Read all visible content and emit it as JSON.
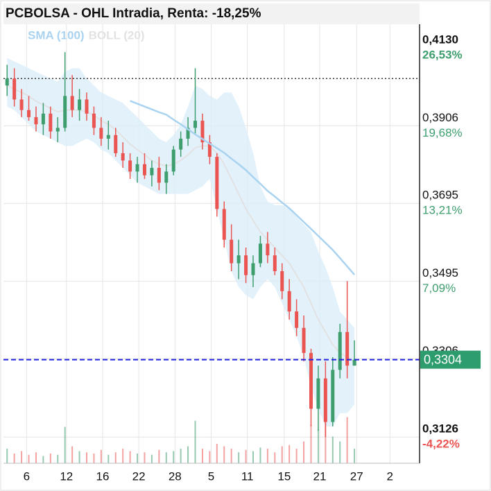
{
  "chart_data": {
    "type": "candlestick",
    "title": "PCBOLSA - OHL Intradia, Renta: -18,25%",
    "legend": [
      {
        "name": "SMA (100)",
        "color": "#a9d3f0"
      },
      {
        "name": "BOLL (20)",
        "color": "#e2e2e2"
      }
    ],
    "log_scale": true,
    "grid": true,
    "up_color": "#3e9e6e",
    "down_color": "#ea5552",
    "xlim": [
      -0.5,
      57
    ],
    "xticks": [
      {
        "value": 2.7,
        "label": "6"
      },
      {
        "value": 8.2,
        "label": "12"
      },
      {
        "value": 13.2,
        "label": "16"
      },
      {
        "value": 18.2,
        "label": "22"
      },
      {
        "value": 23.2,
        "label": "28"
      },
      {
        "value": 28.2,
        "label": "5"
      },
      {
        "value": 33.2,
        "label": "11"
      },
      {
        "value": 38.3,
        "label": "15"
      },
      {
        "value": 43.2,
        "label": "21"
      },
      {
        "value": 48.3,
        "label": "27"
      },
      {
        "value": 52.9,
        "label": "2"
      }
    ],
    "ylim": [
      0.3068,
      0.42
    ],
    "yticks": [
      {
        "value": 0.413,
        "label": "0,4130"
      },
      {
        "value": 0.3906,
        "label": "0,3906"
      },
      {
        "value": 0.3695,
        "label": "0,3695"
      },
      {
        "value": 0.3495,
        "label": "0,3495"
      },
      {
        "value": 0.3306,
        "label": "0,3306"
      },
      {
        "value": 0.3126,
        "label": "0,3126"
      }
    ],
    "ytick_changes": [
      "26,53%",
      "19,68%",
      "13,21%",
      "7,09%",
      null,
      "-4,22%"
    ],
    "ytick_change_colors": [
      "#3e9e6e",
      "#3e9e6e",
      "#3e9e6e",
      "#3e9e6e",
      null,
      "#ea5552"
    ],
    "reference_line": 0.404,
    "current_price": {
      "value": 0.3304,
      "label": "0,3304"
    },
    "x": [
      0,
      1,
      2,
      3,
      4,
      5,
      6,
      7,
      8,
      9,
      10,
      11,
      12,
      13,
      14,
      15,
      16,
      17,
      18,
      19,
      20,
      21,
      22,
      23,
      24,
      25,
      26,
      27,
      28,
      29,
      30,
      31,
      32,
      33,
      34,
      35,
      36,
      37,
      38,
      39,
      40,
      41,
      42,
      43,
      44,
      45,
      46,
      47,
      48
    ],
    "open": [
      0.402,
      0.404,
      0.398,
      0.395,
      0.393,
      0.391,
      0.394,
      0.389,
      0.39,
      0.399,
      0.395,
      0.398,
      0.394,
      0.39,
      0.387,
      0.388,
      0.383,
      0.381,
      0.378,
      0.38,
      0.377,
      0.379,
      0.375,
      0.378,
      0.384,
      0.387,
      0.39,
      0.392,
      0.386,
      0.382,
      0.368,
      0.36,
      0.354,
      0.356,
      0.351,
      0.354,
      0.359,
      0.356,
      0.352,
      0.347,
      0.342,
      0.338,
      0.332,
      0.319,
      0.326,
      0.316,
      0.328,
      0.337,
      0.329
    ],
    "high": [
      0.408,
      0.407,
      0.401,
      0.399,
      0.396,
      0.397,
      0.396,
      0.393,
      0.4117,
      0.405,
      0.401,
      0.4,
      0.396,
      0.393,
      0.392,
      0.39,
      0.386,
      0.383,
      0.382,
      0.383,
      0.381,
      0.382,
      0.38,
      0.385,
      0.389,
      0.393,
      0.407,
      0.394,
      0.388,
      0.383,
      0.37,
      0.364,
      0.36,
      0.358,
      0.356,
      0.361,
      0.362,
      0.358,
      0.354,
      0.35,
      0.345,
      0.341,
      0.333,
      0.329,
      0.33,
      0.331,
      0.339,
      0.3495,
      0.335
    ],
    "low": [
      0.399,
      0.396,
      0.393,
      0.392,
      0.389,
      0.388,
      0.387,
      0.386,
      0.389,
      0.393,
      0.392,
      0.392,
      0.388,
      0.385,
      0.384,
      0.382,
      0.379,
      0.376,
      0.375,
      0.376,
      0.374,
      0.373,
      0.372,
      0.377,
      0.382,
      0.385,
      0.388,
      0.384,
      0.38,
      0.366,
      0.358,
      0.352,
      0.35,
      0.349,
      0.348,
      0.353,
      0.354,
      0.351,
      0.345,
      0.34,
      0.336,
      0.33,
      0.315,
      0.314,
      0.3126,
      0.315,
      0.326,
      0.326,
      0.329
    ],
    "close": [
      0.404,
      0.398,
      0.395,
      0.393,
      0.391,
      0.394,
      0.389,
      0.39,
      0.399,
      0.395,
      0.398,
      0.394,
      0.39,
      0.387,
      0.388,
      0.383,
      0.381,
      0.378,
      0.38,
      0.377,
      0.379,
      0.375,
      0.378,
      0.384,
      0.387,
      0.39,
      0.392,
      0.386,
      0.382,
      0.368,
      0.36,
      0.354,
      0.356,
      0.351,
      0.354,
      0.359,
      0.356,
      0.352,
      0.347,
      0.342,
      0.338,
      0.332,
      0.319,
      0.326,
      0.316,
      0.328,
      0.337,
      0.329,
      0.3304
    ],
    "volume": [
      12,
      8,
      10,
      7,
      9,
      6,
      8,
      7,
      30,
      14,
      10,
      9,
      8,
      11,
      7,
      9,
      12,
      10,
      8,
      9,
      7,
      11,
      9,
      10,
      12,
      14,
      35,
      12,
      10,
      16,
      14,
      12,
      9,
      11,
      10,
      13,
      12,
      9,
      14,
      15,
      12,
      18,
      32,
      28,
      40,
      22,
      18,
      38,
      12
    ],
    "sma": [
      null,
      null,
      null,
      null,
      null,
      null,
      null,
      null,
      null,
      null,
      null,
      null,
      null,
      null,
      null,
      null,
      null,
      0.3976,
      0.3968,
      0.396,
      0.3952,
      0.3944,
      0.3937,
      0.3923,
      0.391,
      0.3896,
      0.3882,
      0.3869,
      0.3856,
      0.3844,
      0.3831,
      0.3815,
      0.38,
      0.3784,
      0.3765,
      0.3747,
      0.3728,
      0.3713,
      0.3697,
      0.3682,
      0.3664,
      0.3646,
      0.3628,
      0.361,
      0.3592,
      0.3574,
      0.3553,
      0.3532,
      0.3511
    ],
    "boll_mid": [
      0.402,
      0.401,
      0.4,
      0.399,
      0.3975,
      0.3965,
      0.3955,
      0.3945,
      0.395,
      0.395,
      0.395,
      0.3945,
      0.3935,
      0.392,
      0.391,
      0.3895,
      0.3875,
      0.3855,
      0.384,
      0.3825,
      0.381,
      0.38,
      0.3795,
      0.38,
      0.381,
      0.3825,
      0.3845,
      0.385,
      0.385,
      0.383,
      0.38,
      0.376,
      0.372,
      0.368,
      0.365,
      0.362,
      0.36,
      0.358,
      0.356,
      0.354,
      0.351,
      0.348,
      0.344,
      0.34,
      0.337,
      0.334,
      0.332,
      0.331,
      0.33
    ],
    "boll_up": [
      0.41,
      0.409,
      0.408,
      0.407,
      0.406,
      0.405,
      0.404,
      0.403,
      0.406,
      0.407,
      0.407,
      0.404,
      0.402,
      0.4,
      0.399,
      0.398,
      0.397,
      0.395,
      0.393,
      0.391,
      0.389,
      0.387,
      0.386,
      0.388,
      0.391,
      0.396,
      0.402,
      0.401,
      0.399,
      0.398,
      0.4,
      0.4,
      0.396,
      0.39,
      0.383,
      0.374,
      0.37,
      0.369,
      0.369,
      0.368,
      0.366,
      0.364,
      0.362,
      0.357,
      0.353,
      0.348,
      0.342,
      0.34,
      0.338
    ],
    "boll_low": [
      0.396,
      0.395,
      0.393,
      0.391,
      0.389,
      0.388,
      0.387,
      0.386,
      0.385,
      0.385,
      0.386,
      0.387,
      0.386,
      0.384,
      0.383,
      0.381,
      0.379,
      0.377,
      0.375,
      0.374,
      0.373,
      0.372,
      0.372,
      0.372,
      0.372,
      0.372,
      0.373,
      0.374,
      0.376,
      0.368,
      0.36,
      0.352,
      0.348,
      0.346,
      0.345,
      0.348,
      0.35,
      0.348,
      0.344,
      0.34,
      0.336,
      0.331,
      0.324,
      0.319,
      0.315,
      0.315,
      0.318,
      0.318,
      0.32
    ]
  }
}
